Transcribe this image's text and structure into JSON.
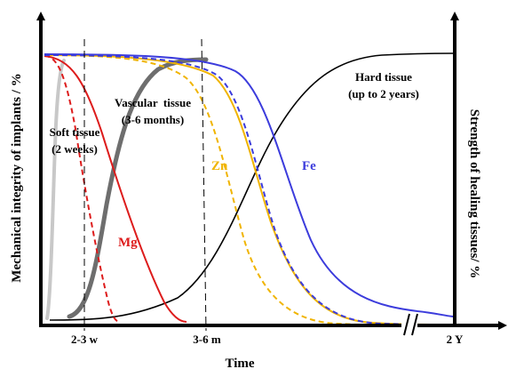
{
  "chart_data": {
    "type": "line",
    "ylabel_left": "Mechanical integrity of implants / %",
    "ylabel_right": "Strength of healing tissues/ %",
    "xlabel": "Time",
    "x_ticks": [
      "2-3 w",
      "3-6 m",
      "2 Y"
    ],
    "axis_break": true,
    "annotations": [
      {
        "lines": [
          "Soft tissue",
          "(2 weeks)"
        ],
        "color": "#000000"
      },
      {
        "lines": [
          "Vascular  tissue",
          "(3-6 months)"
        ],
        "color": "#000000"
      },
      {
        "lines": [
          "Hard tissue",
          "(up to 2 years)"
        ],
        "color": "#000000"
      }
    ],
    "series_labels": [
      {
        "text": "Mg",
        "color": "#dd1c1c"
      },
      {
        "text": "Zn",
        "color": "#f0b400"
      },
      {
        "text": "Fe",
        "color": "#3c3cdc"
      }
    ],
    "colors": {
      "mg": "#dd1c1c",
      "zn": "#f0b400",
      "fe": "#3c3cdc",
      "soft": "#c8c8c8",
      "vascular": "#6e6e6e",
      "hard": "#000000"
    }
  }
}
